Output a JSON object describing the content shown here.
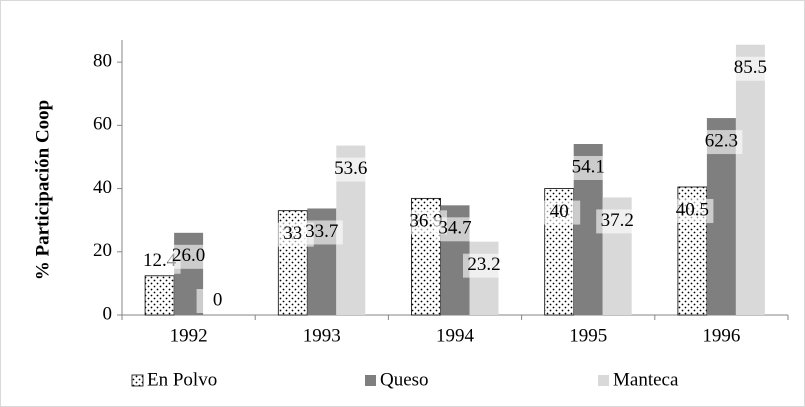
{
  "chart_data": {
    "type": "bar",
    "ylabel": "% Participación Coop",
    "categories": [
      "1992",
      "1993",
      "1994",
      "1995",
      "1996"
    ],
    "series": [
      {
        "name": "En Polvo",
        "color": "#ffffff",
        "pattern": "dotted",
        "values": [
          12.4,
          33,
          36.9,
          40,
          40.5
        ]
      },
      {
        "name": "Queso",
        "color": "#7f7f7f",
        "values": [
          26.0,
          33.7,
          34.7,
          54.1,
          62.3
        ],
        "value_labels": [
          "26.0",
          "33.7",
          "34.7",
          "54.1",
          "62.3"
        ]
      },
      {
        "name": "Manteca",
        "color": "#d9d9d9",
        "values": [
          0,
          53.6,
          23.2,
          37.2,
          85.5
        ]
      }
    ],
    "ylim": [
      0,
      87
    ],
    "yticks": [
      0,
      20,
      40,
      60,
      80
    ],
    "grid": false,
    "legend": "bottom"
  }
}
